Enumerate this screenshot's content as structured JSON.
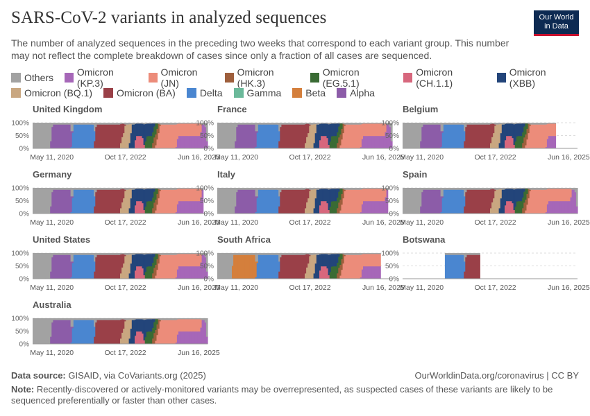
{
  "header": {
    "title": "SARS-CoV-2 variants in analyzed sequences",
    "subtitle": "The number of analyzed sequences in the preceding two weeks that correspond to each variant group. This number may not reflect the complete breakdown of cases since only a fraction of all cases are sequenced.",
    "logo_line1": "Our World",
    "logo_line2": "in Data"
  },
  "footer": {
    "source_label": "Data source:",
    "source_text": "GISAID, via CoVariants.org (2025)",
    "right_text": "OurWorldinData.org/coronavirus | CC BY",
    "note_label": "Note:",
    "note_text": "Recently-discovered or actively-monitored variants may be overrepresented, as suspected cases of these variants are likely to be sequenced preferentially or faster than other cases."
  },
  "chart_data": {
    "type": "area",
    "stacked": true,
    "normalized": true,
    "y_ticks": [
      "0%",
      "50%",
      "100%"
    ],
    "x_ticks": [
      "May 11, 2020",
      "Oct 17, 2022",
      "Jun 16, 2025"
    ],
    "legend": [
      {
        "name": "Others",
        "color": "#a2a2a2"
      },
      {
        "name": "Omicron (KP.3)",
        "color": "#a667b8"
      },
      {
        "name": "Omicron (JN)",
        "color": "#ec8c7a"
      },
      {
        "name": "Omicron (HK.3)",
        "color": "#9e5f3c"
      },
      {
        "name": "Omicron (EG.5.1)",
        "color": "#3a6b34"
      },
      {
        "name": "Omicron (CH.1.1)",
        "color": "#d7677d"
      },
      {
        "name": "Omicron (XBB)",
        "color": "#23457a"
      },
      {
        "name": "Omicron (BQ.1)",
        "color": "#c9a781"
      },
      {
        "name": "Omicron (BA)",
        "color": "#9a4048"
      },
      {
        "name": "Delta",
        "color": "#4a86d0"
      },
      {
        "name": "Gamma",
        "color": "#6bb99a"
      },
      {
        "name": "Beta",
        "color": "#d47f3c"
      },
      {
        "name": "Alpha",
        "color": "#8c5ca8"
      }
    ],
    "panels": [
      {
        "country": "United Kingdom"
      },
      {
        "country": "France"
      },
      {
        "country": "Belgium"
      },
      {
        "country": "Germany"
      },
      {
        "country": "Italy"
      },
      {
        "country": "Spain"
      },
      {
        "country": "United States"
      },
      {
        "country": "South Africa"
      },
      {
        "country": "Botswana"
      },
      {
        "country": "Australia"
      }
    ]
  }
}
